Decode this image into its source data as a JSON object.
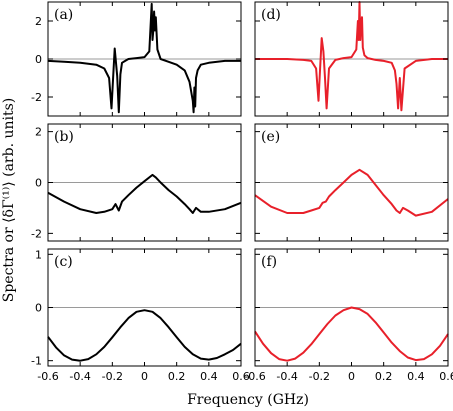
{
  "figure": {
    "xlabel": "Frequency (GHz)",
    "ylabel": "Spectra or ⟨δΓ⁽¹⁾⟩ (arb. units)",
    "colors": {
      "experiment": "#000000",
      "theory": "#e8202a",
      "zero_line": "#9a9a9a",
      "frame": "#000000"
    }
  },
  "chart_data": [
    {
      "type": "line",
      "panel": "(a)",
      "title": "",
      "xlim": [
        -0.6,
        0.6
      ],
      "ylim": [
        -3.0,
        3.0
      ],
      "yticks": [
        2,
        0,
        -2
      ],
      "ytick_labels": [
        "2",
        "0",
        "-2"
      ],
      "zero_line": true,
      "series": [
        {
          "color": "#000000",
          "x": [
            -0.6,
            -0.5,
            -0.4,
            -0.3,
            -0.25,
            -0.22,
            -0.205,
            -0.195,
            -0.185,
            -0.17,
            -0.16,
            -0.15,
            -0.14,
            -0.12,
            -0.1,
            -0.05,
            0.0,
            0.03,
            0.045,
            0.05,
            0.055,
            0.06,
            0.065,
            0.07,
            0.08,
            0.1,
            0.15,
            0.2,
            0.25,
            0.28,
            0.3,
            0.305,
            0.31,
            0.315,
            0.32,
            0.33,
            0.35,
            0.4,
            0.5,
            0.6
          ],
          "y": [
            -0.1,
            -0.15,
            -0.2,
            -0.3,
            -0.5,
            -1.0,
            -2.6,
            -1.0,
            0.55,
            -0.9,
            -2.8,
            -0.8,
            -0.2,
            -0.1,
            0.0,
            0.05,
            0.1,
            0.4,
            2.9,
            1.0,
            1.5,
            2.5,
            1.5,
            2.2,
            0.5,
            0.0,
            -0.15,
            -0.3,
            -0.6,
            -1.2,
            -2.2,
            -2.8,
            -1.5,
            -2.5,
            -1.0,
            -0.6,
            -0.3,
            -0.2,
            -0.1,
            -0.1
          ]
        }
      ]
    },
    {
      "type": "line",
      "panel": "(b)",
      "title": "",
      "xlim": [
        -0.6,
        0.6
      ],
      "ylim": [
        -2.3,
        2.3
      ],
      "yticks": [
        2,
        0,
        -2
      ],
      "ytick_labels": [
        "2",
        "0",
        "-2"
      ],
      "zero_line": true,
      "series": [
        {
          "color": "#000000",
          "x": [
            -0.6,
            -0.5,
            -0.4,
            -0.3,
            -0.25,
            -0.2,
            -0.18,
            -0.16,
            -0.14,
            -0.1,
            -0.05,
            0.0,
            0.05,
            0.07,
            0.1,
            0.15,
            0.2,
            0.25,
            0.28,
            0.3,
            0.32,
            0.35,
            0.4,
            0.5,
            0.6
          ],
          "y": [
            -0.4,
            -0.75,
            -1.05,
            -1.2,
            -1.15,
            -1.05,
            -0.85,
            -1.1,
            -0.75,
            -0.5,
            -0.2,
            0.05,
            0.3,
            0.2,
            0.0,
            -0.3,
            -0.55,
            -0.85,
            -1.05,
            -1.2,
            -1.0,
            -1.15,
            -1.15,
            -1.05,
            -0.8
          ]
        }
      ]
    },
    {
      "type": "line",
      "panel": "(c)",
      "title": "",
      "xlim": [
        -0.6,
        0.6
      ],
      "ylim": [
        -1.1,
        1.1
      ],
      "yticks": [
        1,
        0,
        -1
      ],
      "ytick_labels": [
        "1",
        "0",
        "-1"
      ],
      "zero_line": true,
      "series": [
        {
          "color": "#000000",
          "x": [
            -0.6,
            -0.55,
            -0.5,
            -0.45,
            -0.4,
            -0.35,
            -0.3,
            -0.25,
            -0.2,
            -0.15,
            -0.1,
            -0.05,
            0.0,
            0.05,
            0.1,
            0.15,
            0.2,
            0.25,
            0.3,
            0.35,
            0.4,
            0.45,
            0.5,
            0.55,
            0.6
          ],
          "y": [
            -0.55,
            -0.75,
            -0.9,
            -0.98,
            -1.0,
            -0.97,
            -0.88,
            -0.74,
            -0.56,
            -0.37,
            -0.2,
            -0.08,
            -0.05,
            -0.08,
            -0.2,
            -0.37,
            -0.56,
            -0.74,
            -0.88,
            -0.96,
            -0.98,
            -0.95,
            -0.88,
            -0.8,
            -0.68
          ]
        }
      ]
    },
    {
      "type": "line",
      "panel": "(d)",
      "title": "",
      "xlim": [
        -0.6,
        0.6
      ],
      "ylim": [
        -3.0,
        3.0
      ],
      "yticks": [
        2,
        0,
        -2
      ],
      "ytick_labels": [],
      "zero_line": true,
      "series": [
        {
          "color": "#e8202a",
          "x": [
            -0.6,
            -0.4,
            -0.3,
            -0.25,
            -0.22,
            -0.205,
            -0.195,
            -0.185,
            -0.175,
            -0.165,
            -0.155,
            -0.14,
            -0.1,
            -0.05,
            0.0,
            0.03,
            0.04,
            0.045,
            0.05,
            0.055,
            0.06,
            0.065,
            0.07,
            0.08,
            0.1,
            0.15,
            0.2,
            0.25,
            0.27,
            0.28,
            0.29,
            0.3,
            0.31,
            0.33,
            0.4,
            0.5,
            0.6
          ],
          "y": [
            0.0,
            0.0,
            -0.05,
            -0.1,
            -0.5,
            -2.2,
            -0.5,
            1.1,
            0.4,
            -1.0,
            -2.6,
            -0.5,
            -0.05,
            0.05,
            0.1,
            0.5,
            2.0,
            1.0,
            3.0,
            1.0,
            2.0,
            2.2,
            0.6,
            0.2,
            0.05,
            -0.05,
            -0.1,
            -0.2,
            -0.6,
            -1.3,
            -2.6,
            -1.0,
            -2.7,
            -0.5,
            -0.1,
            0.0,
            0.0
          ]
        }
      ]
    },
    {
      "type": "line",
      "panel": "(e)",
      "title": "",
      "xlim": [
        -0.6,
        0.6
      ],
      "ylim": [
        -2.3,
        2.3
      ],
      "yticks": [
        2,
        0,
        -2
      ],
      "ytick_labels": [],
      "zero_line": true,
      "series": [
        {
          "color": "#e8202a",
          "x": [
            -0.6,
            -0.5,
            -0.4,
            -0.3,
            -0.25,
            -0.2,
            -0.18,
            -0.16,
            -0.14,
            -0.1,
            -0.05,
            0.0,
            0.05,
            0.1,
            0.15,
            0.2,
            0.25,
            0.28,
            0.3,
            0.32,
            0.35,
            0.4,
            0.5,
            0.6
          ],
          "y": [
            -0.5,
            -0.95,
            -1.2,
            -1.2,
            -1.1,
            -1.0,
            -0.8,
            -0.75,
            -0.55,
            -0.3,
            0.0,
            0.3,
            0.5,
            0.3,
            -0.1,
            -0.5,
            -0.85,
            -1.1,
            -1.2,
            -1.0,
            -1.1,
            -1.3,
            -1.15,
            -0.65
          ]
        }
      ]
    },
    {
      "type": "line",
      "panel": "(f)",
      "title": "",
      "xlim": [
        -0.6,
        0.6
      ],
      "ylim": [
        -1.1,
        1.1
      ],
      "yticks": [
        1,
        0,
        -1
      ],
      "ytick_labels": [],
      "zero_line": true,
      "series": [
        {
          "color": "#e8202a",
          "x": [
            -0.6,
            -0.55,
            -0.5,
            -0.45,
            -0.4,
            -0.35,
            -0.3,
            -0.25,
            -0.2,
            -0.15,
            -0.1,
            -0.05,
            0.0,
            0.05,
            0.1,
            0.15,
            0.2,
            0.25,
            0.3,
            0.35,
            0.4,
            0.45,
            0.5,
            0.55,
            0.6
          ],
          "y": [
            -0.45,
            -0.68,
            -0.86,
            -0.97,
            -1.0,
            -0.96,
            -0.85,
            -0.69,
            -0.5,
            -0.31,
            -0.15,
            -0.05,
            0.0,
            -0.03,
            -0.12,
            -0.28,
            -0.47,
            -0.66,
            -0.82,
            -0.94,
            -0.99,
            -0.97,
            -0.88,
            -0.72,
            -0.5
          ]
        }
      ]
    }
  ],
  "shared_x": {
    "ticks": [
      -0.6,
      -0.4,
      -0.2,
      0,
      0.2,
      0.4,
      0.6
    ],
    "tick_labels": [
      "-0.6",
      "-0.4",
      "-0.2",
      "0",
      "0.2",
      "0.4",
      "0.6"
    ]
  }
}
